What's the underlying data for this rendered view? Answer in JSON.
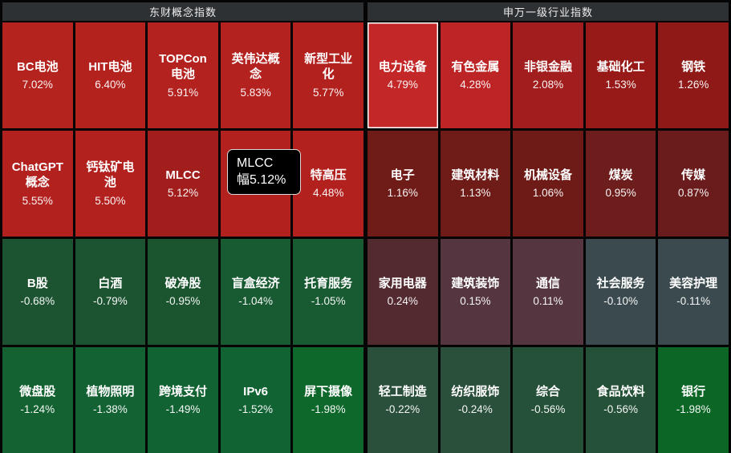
{
  "sections": [
    {
      "title": "东财概念指数",
      "tiles": [
        {
          "name": "BC电池",
          "pct": "7.02%",
          "color": "#b5231f"
        },
        {
          "name": "HIT电池",
          "pct": "6.40%",
          "color": "#b4221e"
        },
        {
          "name": "TOPCon电池",
          "pct": "5.91%",
          "color": "#b3221f"
        },
        {
          "name": "英伟达概念",
          "pct": "5.83%",
          "color": "#b3221f"
        },
        {
          "name": "新型工业化",
          "pct": "5.77%",
          "color": "#b2211e"
        },
        {
          "name": "ChatGPT概念",
          "pct": "5.55%",
          "color": "#b2211e"
        },
        {
          "name": "钙钛矿电池",
          "pct": "5.50%",
          "color": "#b2211e"
        },
        {
          "name": "MLCC",
          "pct": "5.12%",
          "color": "#a11e1d"
        },
        {
          "name": "",
          "pct": "",
          "color": "#b2211e",
          "hidden_by_tooltip": true
        },
        {
          "name": "特高压",
          "pct": "4.48%",
          "color": "#b2211e"
        },
        {
          "name": "B股",
          "pct": "-0.68%",
          "color": "#1c5431"
        },
        {
          "name": "白酒",
          "pct": "-0.79%",
          "color": "#1c5431"
        },
        {
          "name": "破净股",
          "pct": "-0.95%",
          "color": "#1b5530"
        },
        {
          "name": "盲盒经济",
          "pct": "-1.04%",
          "color": "#185a31"
        },
        {
          "name": "托育服务",
          "pct": "-1.05%",
          "color": "#185a31"
        },
        {
          "name": "微盘股",
          "pct": "-1.24%",
          "color": "#146231"
        },
        {
          "name": "植物照明",
          "pct": "-1.38%",
          "color": "#136233"
        },
        {
          "name": "跨境支付",
          "pct": "-1.49%",
          "color": "#126334"
        },
        {
          "name": "IPv6",
          "pct": "-1.52%",
          "color": "#126334"
        },
        {
          "name": "屏下摄像",
          "pct": "-1.98%",
          "color": "#0e682b"
        }
      ]
    },
    {
      "title": "申万一级行业指数",
      "tiles": [
        {
          "name": "电力设备",
          "pct": "4.79%",
          "color": "#c42728",
          "selected": true
        },
        {
          "name": "有色金属",
          "pct": "4.28%",
          "color": "#bd2425"
        },
        {
          "name": "非银金融",
          "pct": "2.08%",
          "color": "#a21d1d"
        },
        {
          "name": "基础化工",
          "pct": "1.53%",
          "color": "#971a18"
        },
        {
          "name": "钢铁",
          "pct": "1.26%",
          "color": "#8e1916"
        },
        {
          "name": "电子",
          "pct": "1.16%",
          "color": "#6f1b17"
        },
        {
          "name": "建筑材料",
          "pct": "1.13%",
          "color": "#6f1b17"
        },
        {
          "name": "机械设备",
          "pct": "1.06%",
          "color": "#6e1b18"
        },
        {
          "name": "煤炭",
          "pct": "0.95%",
          "color": "#6c1d1c"
        },
        {
          "name": "传媒",
          "pct": "0.87%",
          "color": "#691c1b"
        },
        {
          "name": "家用电器",
          "pct": "0.24%",
          "color": "#532a30"
        },
        {
          "name": "建筑装饰",
          "pct": "0.15%",
          "color": "#553640"
        },
        {
          "name": "通信",
          "pct": "0.11%",
          "color": "#553640"
        },
        {
          "name": "社会服务",
          "pct": "-0.10%",
          "color": "#3a4a4e"
        },
        {
          "name": "美容护理",
          "pct": "-0.11%",
          "color": "#3a4a4e"
        },
        {
          "name": "轻工制造",
          "pct": "-0.22%",
          "color": "#2a4f3a"
        },
        {
          "name": "纺织服饰",
          "pct": "-0.24%",
          "color": "#2a4f3a"
        },
        {
          "name": "综合",
          "pct": "-0.56%",
          "color": "#255138"
        },
        {
          "name": "食品饮料",
          "pct": "-0.56%",
          "color": "#255138"
        },
        {
          "name": "银行",
          "pct": "-1.98%",
          "color": "#0c6626"
        }
      ]
    }
  ],
  "tooltip": {
    "line1": "MLCC",
    "line2": "幅5.12%"
  },
  "chart_data": [
    {
      "type": "heatmap",
      "title": "东财概念指数",
      "labels": [
        "BC电池",
        "HIT电池",
        "TOPCon电池",
        "英伟达概念",
        "新型工业化",
        "ChatGPT概念",
        "钙钛矿电池",
        "MLCC",
        "",
        "特高压",
        "B股",
        "白酒",
        "破净股",
        "盲盒经济",
        "托育服务",
        "微盘股",
        "植物照明",
        "跨境支付",
        "IPv6",
        "屏下摄像"
      ],
      "values": [
        7.02,
        6.4,
        5.91,
        5.83,
        5.77,
        5.55,
        5.5,
        5.12,
        null,
        4.48,
        -0.68,
        -0.79,
        -0.95,
        -1.04,
        -1.05,
        -1.24,
        -1.38,
        -1.49,
        -1.52,
        -1.98
      ],
      "unit": "%",
      "layout": "4 rows x 5 cols, row-major, positive=red negative=green"
    },
    {
      "type": "heatmap",
      "title": "申万一级行业指数",
      "labels": [
        "电力设备",
        "有色金属",
        "非银金融",
        "基础化工",
        "钢铁",
        "电子",
        "建筑材料",
        "机械设备",
        "煤炭",
        "传媒",
        "家用电器",
        "建筑装饰",
        "通信",
        "社会服务",
        "美容护理",
        "轻工制造",
        "纺织服饰",
        "综合",
        "食品饮料",
        "银行"
      ],
      "values": [
        4.79,
        4.28,
        2.08,
        1.53,
        1.26,
        1.16,
        1.13,
        1.06,
        0.95,
        0.87,
        0.24,
        0.15,
        0.11,
        -0.1,
        -0.11,
        -0.22,
        -0.24,
        -0.56,
        -0.56,
        -1.98
      ],
      "unit": "%",
      "layout": "4 rows x 5 cols, row-major, positive=red negative=green"
    }
  ]
}
